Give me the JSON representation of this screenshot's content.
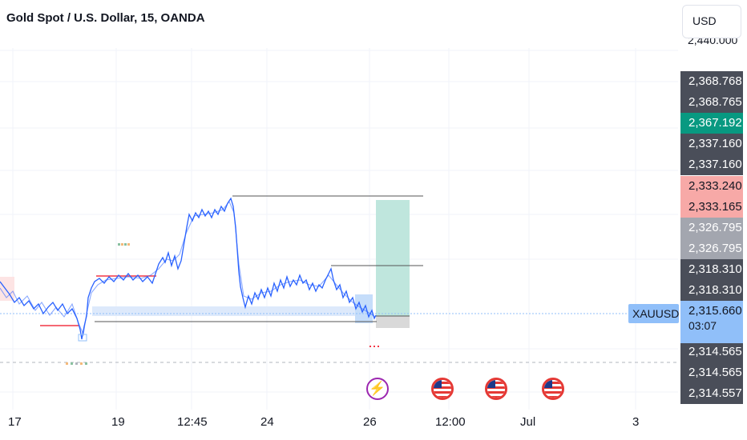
{
  "header": {
    "title": "Gold Spot / U.S. Dollar, 15, OANDA",
    "currency": "USD",
    "top_cut_price": "2,440.000"
  },
  "price_scale": [
    {
      "label": "2,368.768",
      "color": "#4a4e59"
    },
    {
      "label": "2,368.765",
      "color": "#4a4e59"
    },
    {
      "label": "2,367.192",
      "color": "#089981"
    },
    {
      "label": "2,337.160",
      "color": "#4a4e59"
    },
    {
      "label": "2,337.160",
      "color": "#4a4e59"
    },
    {
      "label": "2,333.240",
      "color": "#f7a9a7"
    },
    {
      "label": "2,333.165",
      "color": "#f7a9a7"
    },
    {
      "label": "2,326.795",
      "color": "#a3a6af"
    },
    {
      "label": "2,326.795",
      "color": "#a3a6af"
    },
    {
      "label": "2,318.310",
      "color": "#4a4e59"
    },
    {
      "label": "2,318.310",
      "color": "#4a4e59"
    },
    {
      "label": "2,314.565",
      "color": "#4a4e59"
    },
    {
      "label": "2,314.565",
      "color": "#4a4e59"
    },
    {
      "label": "2,314.557",
      "color": "#4a4e59"
    }
  ],
  "symbol_tag": "XAUUSD",
  "last_price": {
    "price": "2,315.660",
    "countdown": "03:07",
    "color": "#90bff9"
  },
  "time_axis": [
    "17",
    "19",
    "12:45",
    "24",
    "26",
    "12:00",
    "Jul",
    "3"
  ],
  "events": [
    {
      "name": "lightning-event-icon",
      "glyph": "⚡"
    },
    {
      "name": "us-flag-event-icon"
    },
    {
      "name": "us-flag-event-icon"
    },
    {
      "name": "us-flag-event-icon"
    }
  ],
  "colors": {
    "candles": "#2962ff",
    "position_profit": "#bfe6dd",
    "position_loss": "#d9d9d9",
    "zone": "#dde9fb",
    "support_line": "#f23645"
  }
}
